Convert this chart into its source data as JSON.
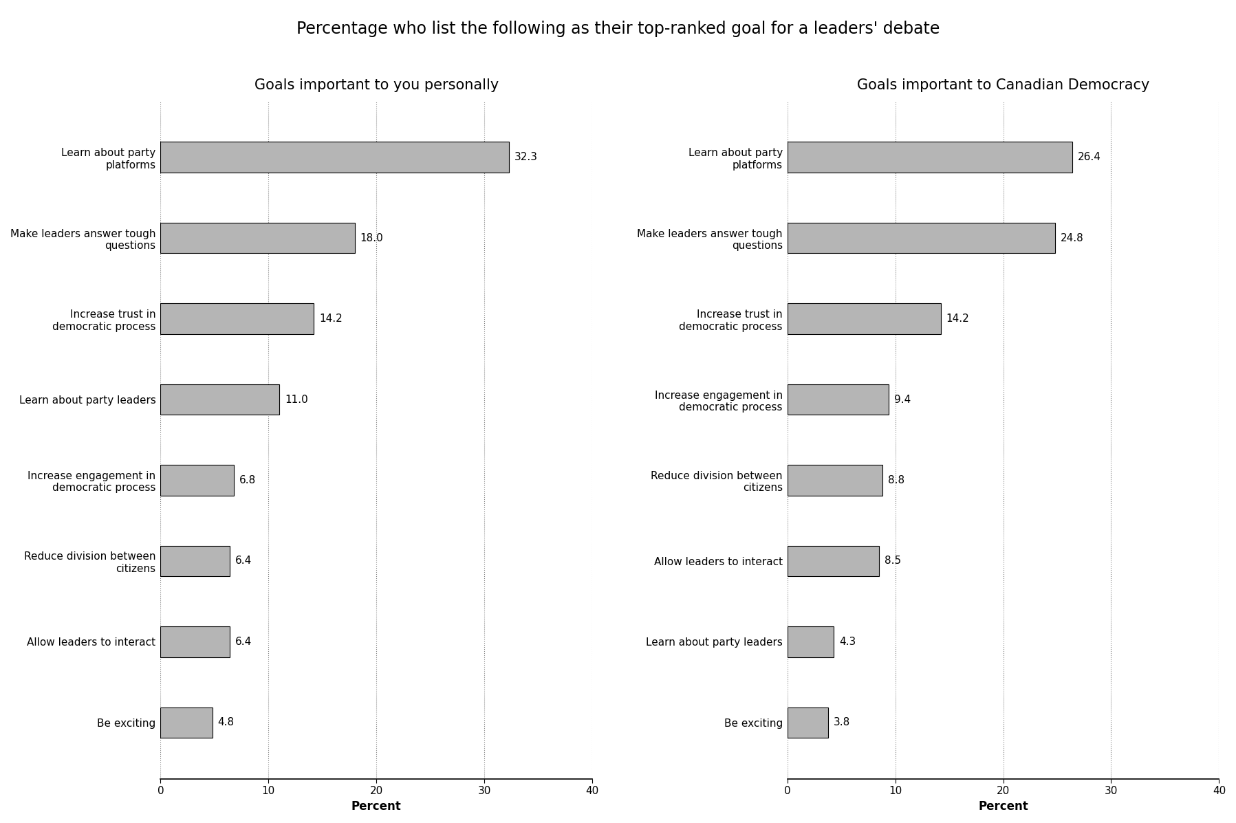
{
  "title": "Percentage who list the following as their top-ranked goal for a leaders' debate",
  "left_title": "Goals important to you personally",
  "right_title": "Goals important to Canadian Democracy",
  "left_labels": [
    "Learn about party\nplatforms",
    "Make leaders answer tough\nquestions",
    "Increase trust in\ndemocratic process",
    "Learn about party leaders",
    "Increase engagement in\ndemocratic process",
    "Reduce division between\ncitizens",
    "Allow leaders to interact",
    "Be exciting"
  ],
  "left_values": [
    32.3,
    18.0,
    14.2,
    11.0,
    6.8,
    6.4,
    6.4,
    4.8
  ],
  "right_labels": [
    "Learn about party\nplatforms",
    "Make leaders answer tough\nquestions",
    "Increase trust in\ndemocratic process",
    "Increase engagement in\ndemocratic process",
    "Reduce division between\ncitizens",
    "Allow leaders to interact",
    "Learn about party leaders",
    "Be exciting"
  ],
  "right_values": [
    26.4,
    24.8,
    14.2,
    9.4,
    8.8,
    8.5,
    4.3,
    3.8
  ],
  "bar_color": "#b5b5b5",
  "bar_edge_color": "#000000",
  "xlim": [
    0,
    40
  ],
  "xticks": [
    0,
    10,
    20,
    30,
    40
  ],
  "xlabel": "Percent",
  "background_color": "#ffffff",
  "title_fontsize": 17,
  "subtitle_fontsize": 15,
  "label_fontsize": 11,
  "tick_fontsize": 11,
  "value_fontsize": 11,
  "bar_height": 0.38
}
